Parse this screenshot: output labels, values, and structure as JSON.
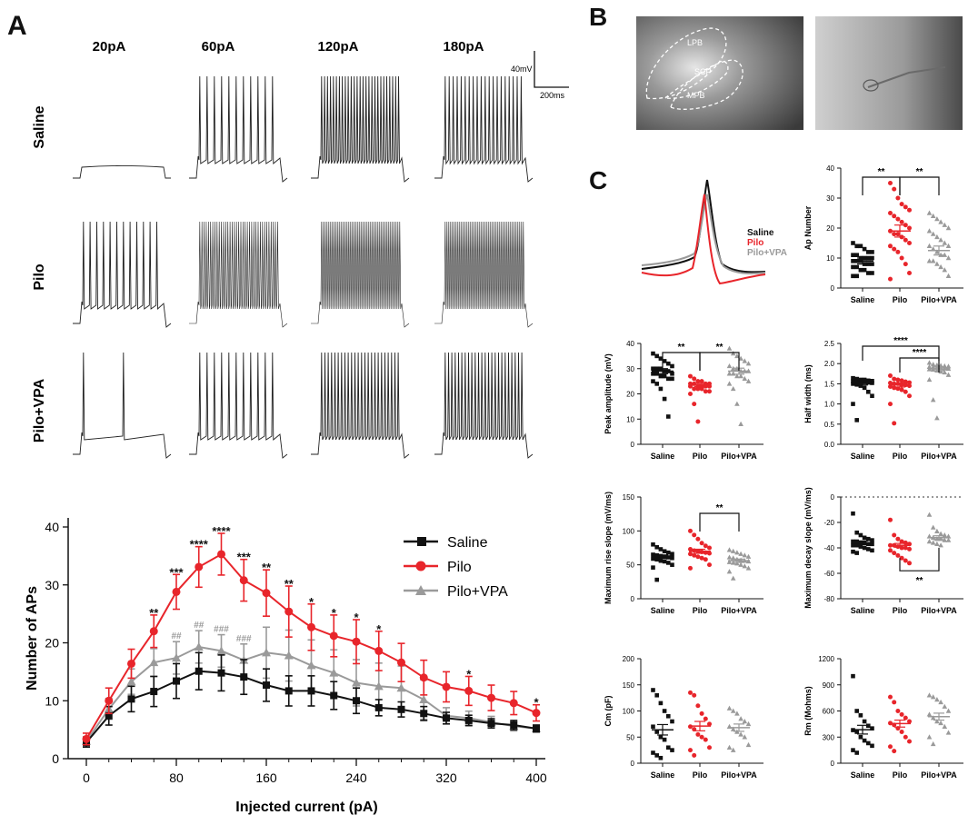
{
  "panel_letters": {
    "a": "A",
    "b": "B",
    "c": "C"
  },
  "traces": {
    "currents": [
      "20pA",
      "60pA",
      "120pA",
      "180pA"
    ],
    "groups": [
      "Saline",
      "Pilo",
      "Pilo+VPA"
    ],
    "scale_v": "40mV",
    "scale_t": "200ms",
    "spikes": [
      [
        0,
        11,
        27,
        20
      ],
      [
        12,
        37,
        44,
        44
      ],
      [
        2,
        11,
        24,
        24
      ]
    ]
  },
  "histology": {
    "labels": [
      "LPB",
      "SCP",
      "MPB"
    ]
  },
  "ap_overlay": {
    "legend": [
      "Saline",
      "Pilo",
      "Pilo+VPA"
    ]
  },
  "colors": {
    "saline": "#111111",
    "pilo": "#e8252b",
    "vpa": "#9a9a9a"
  },
  "chart_data": [
    {
      "type": "line",
      "id": "ap_curve",
      "xlabel": "Injected current (pA)",
      "ylabel": "Number of APs",
      "xlim": [
        0,
        400
      ],
      "ylim": [
        0,
        40
      ],
      "xticks": [
        0,
        80,
        160,
        240,
        320,
        400
      ],
      "yticks": [
        0,
        10,
        20,
        30,
        40
      ],
      "x": [
        0,
        20,
        40,
        60,
        80,
        100,
        120,
        140,
        160,
        180,
        200,
        220,
        240,
        260,
        280,
        300,
        320,
        340,
        360,
        380,
        400
      ],
      "series": [
        {
          "name": "Saline",
          "values": [
            2.8,
            7.4,
            10.3,
            11.6,
            13.4,
            15.1,
            14.8,
            14.1,
            12.7,
            11.7,
            11.7,
            10.9,
            10.0,
            8.8,
            8.5,
            7.8,
            7.0,
            6.6,
            6.1,
            5.8,
            5.2
          ],
          "err": [
            0.8,
            1.6,
            2.2,
            2.6,
            3.0,
            3.2,
            3.1,
            3.0,
            2.8,
            2.6,
            2.6,
            2.4,
            2.2,
            1.4,
            1.3,
            1.2,
            1.0,
            0.9,
            0.8,
            0.8,
            0.6
          ]
        },
        {
          "name": "Pilo",
          "values": [
            3.4,
            10.0,
            16.4,
            22.0,
            28.8,
            33.1,
            35.3,
            30.8,
            28.6,
            25.4,
            22.7,
            21.2,
            20.2,
            18.6,
            16.6,
            14.0,
            12.4,
            11.7,
            10.5,
            9.6,
            7.9
          ],
          "err": [
            1.0,
            2.2,
            2.5,
            2.8,
            3.0,
            3.5,
            3.6,
            3.6,
            4.0,
            4.4,
            4.0,
            3.6,
            3.8,
            3.4,
            3.3,
            3.0,
            2.6,
            2.5,
            2.2,
            2.0,
            1.4
          ]
        },
        {
          "name": "Pilo+VPA",
          "values": [
            3.0,
            8.6,
            13.3,
            16.6,
            17.4,
            19.3,
            18.6,
            17.0,
            18.3,
            17.8,
            16.1,
            14.8,
            13.1,
            12.5,
            12.2,
            10.2,
            7.4,
            7.0,
            6.3,
            5.6,
            5.2
          ],
          "err": [
            0.8,
            1.8,
            2.2,
            2.4,
            2.8,
            2.8,
            2.8,
            2.8,
            4.4,
            4.4,
            4.4,
            4.0,
            4.0,
            4.0,
            3.8,
            3.4,
            1.4,
            1.2,
            1.0,
            0.8,
            0.6
          ]
        }
      ],
      "annotations": [
        {
          "x": 60,
          "text": "**",
          "series": "Pilo"
        },
        {
          "x": 80,
          "text": "***",
          "series": "Pilo"
        },
        {
          "x": 100,
          "text": "****",
          "series": "Pilo"
        },
        {
          "x": 120,
          "text": "****",
          "series": "Pilo"
        },
        {
          "x": 140,
          "text": "***",
          "series": "Pilo"
        },
        {
          "x": 160,
          "text": "**",
          "series": "Pilo"
        },
        {
          "x": 180,
          "text": "**",
          "series": "Pilo"
        },
        {
          "x": 200,
          "text": "*",
          "series": "Pilo"
        },
        {
          "x": 220,
          "text": "*",
          "series": "Pilo"
        },
        {
          "x": 240,
          "text": "*",
          "series": "Pilo"
        },
        {
          "x": 260,
          "text": "*",
          "series": "Pilo"
        },
        {
          "x": 340,
          "text": "*",
          "series": "Pilo"
        },
        {
          "x": 400,
          "text": "*",
          "series": "Pilo"
        },
        {
          "x": 80,
          "text": "##",
          "series": "Pilo+VPA"
        },
        {
          "x": 100,
          "text": "##",
          "series": "Pilo+VPA"
        },
        {
          "x": 120,
          "text": "###",
          "series": "Pilo+VPA"
        },
        {
          "x": 140,
          "text": "###",
          "series": "Pilo+VPA"
        }
      ],
      "legend": [
        "Saline",
        "Pilo",
        "Pilo+VPA"
      ]
    },
    {
      "type": "scatter",
      "id": "ap_number",
      "ylabel": "Ap Number",
      "ylim": [
        0,
        40
      ],
      "yticks": [
        0,
        10,
        20,
        30,
        40
      ],
      "categories": [
        "Saline",
        "Pilo",
        "Pilo+VPA"
      ],
      "means": [
        9,
        19,
        12.5
      ],
      "sem": [
        1,
        2,
        1.5
      ],
      "points": [
        [
          15,
          14,
          14,
          13,
          12,
          12,
          11,
          11,
          10,
          10,
          10,
          10,
          9,
          9,
          9,
          8,
          8,
          8,
          7,
          7,
          6,
          6,
          5,
          5,
          4,
          4
        ],
        [
          35,
          33,
          30,
          28,
          27,
          26,
          25,
          24,
          23,
          22,
          21,
          20,
          19,
          18,
          18,
          17,
          16,
          15,
          14,
          13,
          12,
          10,
          8,
          5,
          3
        ],
        [
          25,
          24,
          23,
          22,
          21,
          20,
          19,
          18,
          17,
          16,
          15,
          14,
          14,
          13,
          12,
          11,
          11,
          10,
          9,
          9,
          8,
          7,
          6,
          4
        ]
      ],
      "sig": [
        {
          "from": 0,
          "to": 1,
          "label": "**"
        },
        {
          "from": 1,
          "to": 2,
          "label": "**"
        }
      ]
    },
    {
      "type": "scatter",
      "id": "peak_amp",
      "ylabel": "Peak amplitude (mV)",
      "ylim": [
        0,
        40
      ],
      "yticks": [
        0,
        10,
        20,
        30,
        40
      ],
      "categories": [
        "Saline",
        "Pilo",
        "Pilo+VPA"
      ],
      "means": [
        29,
        23.5,
        29
      ],
      "sem": [
        1,
        0.6,
        1.2
      ],
      "points": [
        [
          36,
          35,
          34,
          33,
          32,
          31,
          30,
          30,
          30,
          29,
          29,
          28,
          28,
          28,
          27,
          27,
          26,
          26,
          25,
          24,
          22,
          18,
          11
        ],
        [
          27,
          26,
          25,
          25,
          24,
          24,
          24,
          24,
          23,
          23,
          23,
          23,
          23,
          22,
          22,
          22,
          21,
          21,
          20,
          16,
          9
        ],
        [
          38,
          36,
          35,
          34,
          33,
          32,
          31,
          30,
          30,
          29,
          29,
          29,
          28,
          28,
          27,
          27,
          26,
          25,
          24,
          22,
          16,
          8
        ]
      ],
      "sig": [
        {
          "from": 0,
          "to": 1,
          "label": "**"
        },
        {
          "from": 1,
          "to": 2,
          "label": "**"
        }
      ]
    },
    {
      "type": "scatter",
      "id": "half_width",
      "ylabel": "Half width (ms)",
      "ylim": [
        0,
        2.5
      ],
      "yticks": [
        0.0,
        0.5,
        1.0,
        1.5,
        2.0,
        2.5
      ],
      "categories": [
        "Saline",
        "Pilo",
        "Pilo+VPA"
      ],
      "means": [
        1.52,
        1.47,
        1.87
      ],
      "sem": [
        0.05,
        0.05,
        0.05
      ],
      "points": [
        [
          1.64,
          1.62,
          1.6,
          1.6,
          1.58,
          1.57,
          1.56,
          1.55,
          1.55,
          1.54,
          1.53,
          1.52,
          1.5,
          1.48,
          1.45,
          1.4,
          1.3,
          1.2,
          1.0,
          0.6
        ],
        [
          1.7,
          1.62,
          1.6,
          1.58,
          1.55,
          1.53,
          1.52,
          1.5,
          1.5,
          1.48,
          1.47,
          1.45,
          1.43,
          1.4,
          1.38,
          1.35,
          1.3,
          1.2,
          1.0,
          0.52
        ],
        [
          2.02,
          1.98,
          1.96,
          1.95,
          1.94,
          1.93,
          1.92,
          1.91,
          1.9,
          1.89,
          1.88,
          1.87,
          1.86,
          1.85,
          1.83,
          1.8,
          1.78,
          1.72,
          1.6,
          1.1,
          0.65
        ]
      ],
      "sig": [
        {
          "from": 0,
          "to": 2,
          "label": "****"
        },
        {
          "from": 1,
          "to": 2,
          "label": "****"
        }
      ]
    },
    {
      "type": "scatter",
      "id": "max_rise",
      "ylabel": "Maximum rise slope (mV/ms)",
      "ylim": [
        0,
        150
      ],
      "yticks": [
        0,
        50,
        100,
        150
      ],
      "categories": [
        "Saline",
        "Pilo",
        "Pilo+VPA"
      ],
      "means": [
        62,
        70,
        56
      ],
      "sem": [
        2.5,
        3,
        2.5
      ],
      "points": [
        [
          80,
          76,
          73,
          70,
          68,
          66,
          65,
          64,
          63,
          62,
          61,
          60,
          59,
          58,
          56,
          55,
          53,
          50,
          46,
          28
        ],
        [
          100,
          94,
          88,
          82,
          78,
          75,
          73,
          71,
          70,
          69,
          68,
          67,
          66,
          64,
          62,
          60,
          58,
          50,
          45
        ],
        [
          72,
          70,
          68,
          66,
          64,
          62,
          61,
          60,
          58,
          57,
          56,
          55,
          54,
          53,
          52,
          50,
          48,
          45,
          40,
          30
        ]
      ],
      "sig": [
        {
          "from": 1,
          "to": 2,
          "label": "**"
        }
      ]
    },
    {
      "type": "scatter",
      "id": "max_decay",
      "ylabel": "Maximum decay slope (mV/ms)",
      "ylim": [
        -80,
        0
      ],
      "yticks": [
        -80,
        -60,
        -40,
        -20,
        0
      ],
      "categories": [
        "Saline",
        "Pilo",
        "Pilo+VPA"
      ],
      "means": [
        -36,
        -38,
        -32
      ],
      "sem": [
        1.5,
        1.5,
        1.5
      ],
      "points": [
        [
          -13,
          -28,
          -30,
          -32,
          -33,
          -34,
          -35,
          -35,
          -36,
          -36,
          -37,
          -37,
          -38,
          -38,
          -39,
          -40,
          -41,
          -42,
          -43,
          -44
        ],
        [
          -18,
          -30,
          -33,
          -35,
          -36,
          -37,
          -38,
          -38,
          -39,
          -40,
          -40,
          -41,
          -42,
          -44,
          -46,
          -48,
          -50,
          -52
        ],
        [
          -14,
          -24,
          -27,
          -29,
          -30,
          -31,
          -31,
          -32,
          -33,
          -33,
          -34,
          -34,
          -35,
          -36,
          -37,
          -38
        ]
      ],
      "sig": [
        {
          "from": 1,
          "to": 2,
          "label": "**"
        }
      ]
    },
    {
      "type": "scatter",
      "id": "cm",
      "ylabel": "Cm (pF)",
      "ylim": [
        0,
        200
      ],
      "yticks": [
        0,
        50,
        100,
        150,
        200
      ],
      "categories": [
        "Saline",
        "Pilo",
        "Pilo+VPA"
      ],
      "means": [
        64,
        71,
        68
      ],
      "sem": [
        10,
        9,
        7
      ],
      "points": [
        [
          140,
          130,
          115,
          100,
          90,
          80,
          70,
          60,
          50,
          45,
          30,
          25,
          20,
          15,
          10
        ],
        [
          135,
          130,
          110,
          95,
          85,
          75,
          70,
          65,
          55,
          50,
          45,
          30,
          25,
          15
        ],
        [
          105,
          100,
          95,
          85,
          80,
          75,
          70,
          65,
          60,
          55,
          50,
          35,
          30,
          25
        ]
      ],
      "sig": []
    },
    {
      "type": "scatter",
      "id": "rm",
      "ylabel": "Rm (Mohms)",
      "ylim": [
        0,
        1200
      ],
      "yticks": [
        0,
        300,
        600,
        900,
        1200
      ],
      "categories": [
        "Saline",
        "Pilo",
        "Pilo+VPA"
      ],
      "means": [
        385,
        455,
        535
      ],
      "sem": [
        50,
        40,
        40
      ],
      "points": [
        [
          1000,
          600,
          550,
          480,
          430,
          400,
          380,
          360,
          300,
          260,
          230,
          200,
          150,
          120
        ],
        [
          760,
          700,
          600,
          560,
          520,
          480,
          460,
          440,
          400,
          360,
          300,
          250,
          190,
          140
        ],
        [
          780,
          760,
          730,
          700,
          650,
          600,
          560,
          520,
          480,
          460,
          420,
          350,
          300,
          220
        ]
      ],
      "sig": []
    }
  ]
}
